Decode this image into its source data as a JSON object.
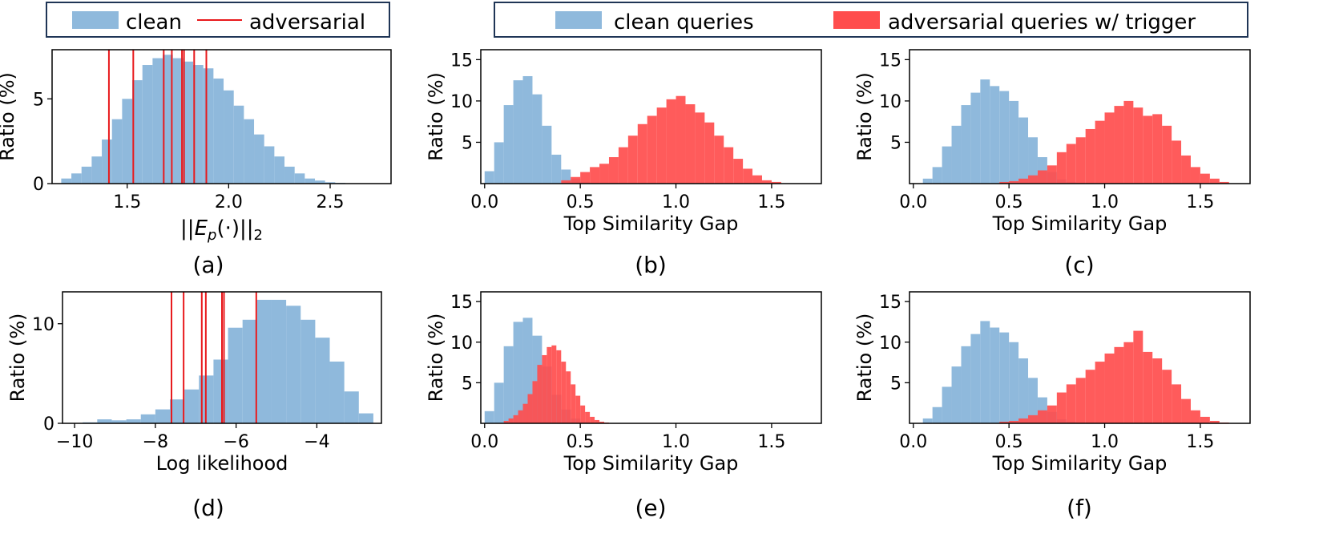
{
  "colors": {
    "clean": "#8fb9dc",
    "adv": "#ff4d4d",
    "adv_line": "#e8191c",
    "frame": "#1f3556"
  },
  "legends": {
    "left": {
      "clean": "clean",
      "adversarial": "adversarial"
    },
    "right": {
      "clean": "clean queries",
      "adversarial": "adversarial queries w/ trigger"
    }
  },
  "chart_data": [
    {
      "id": "a",
      "type": "histogram",
      "caption": "(a)",
      "xlabel_prefix": "||",
      "xlabel_E": "E",
      "xlabel_sub": "p",
      "xlabel_mid": "(·)||",
      "xlabel_sub2": "2",
      "ylabel": "Ratio (%)",
      "xlim": [
        1.13,
        2.8
      ],
      "ylim": [
        0,
        7.9
      ],
      "xticks": [
        1.5,
        2.0,
        2.5
      ],
      "xtick_labels": [
        "1.5",
        "2.0",
        "2.5"
      ],
      "yticks": [
        0,
        5
      ],
      "ytick_labels": [
        "0",
        "5"
      ],
      "series": [
        {
          "name": "clean",
          "bin_start": 1.175,
          "bin_width": 0.05,
          "values": [
            0.3,
            0.6,
            1.0,
            1.6,
            2.6,
            3.8,
            5.0,
            6.1,
            7.0,
            7.4,
            7.6,
            7.4,
            7.2,
            7.0,
            6.8,
            6.2,
            5.5,
            4.6,
            3.8,
            2.9,
            2.2,
            1.6,
            1.0,
            0.6,
            0.3,
            0.18,
            0.08,
            0.04,
            0.02,
            0.01,
            0.01,
            0.01
          ]
        }
      ],
      "adversarial_lines": [
        1.41,
        1.53,
        1.68,
        1.72,
        1.77,
        1.78,
        1.83,
        1.89
      ]
    },
    {
      "id": "b",
      "type": "histogram",
      "caption": "(b)",
      "xlabel": "Top Similarity Gap",
      "ylabel": "Ratio (%)",
      "xlim": [
        -0.02,
        1.76
      ],
      "ylim": [
        0,
        16.2
      ],
      "xticks": [
        0,
        0.5,
        1.0,
        1.5
      ],
      "xtick_labels": [
        "0.0",
        "0.5",
        "1.0",
        "1.5"
      ],
      "yticks": [
        5,
        10,
        15
      ],
      "ytick_labels": [
        "5",
        "10",
        "15"
      ],
      "series": [
        {
          "name": "clean queries",
          "bin_start": 0.0,
          "bin_width": 0.05,
          "values": [
            1.5,
            5.0,
            9.5,
            12.5,
            13.0,
            10.8,
            7.0,
            3.5,
            1.7,
            0.6,
            0.2
          ]
        },
        {
          "name": "adversarial queries w/ trigger",
          "bin_start": 0.4,
          "bin_width": 0.05,
          "values": [
            0.4,
            0.8,
            1.4,
            2.0,
            2.4,
            3.2,
            4.4,
            5.8,
            7.2,
            8.2,
            9.2,
            10.2,
            10.6,
            9.6,
            8.6,
            7.4,
            5.8,
            4.4,
            3.0,
            1.8,
            1.0,
            0.4,
            0.2
          ]
        }
      ]
    },
    {
      "id": "c",
      "type": "histogram",
      "caption": "(c)",
      "xlabel": "Top Similarity Gap",
      "ylabel": "Ratio (%)",
      "xlim": [
        -0.02,
        1.76
      ],
      "ylim": [
        0,
        16.2
      ],
      "xticks": [
        0,
        0.5,
        1.0,
        1.5
      ],
      "xtick_labels": [
        "0.0",
        "0.5",
        "1.0",
        "1.5"
      ],
      "yticks": [
        5,
        10,
        15
      ],
      "ytick_labels": [
        "5",
        "10",
        "15"
      ],
      "series": [
        {
          "name": "clean queries",
          "bin_start": 0.05,
          "bin_width": 0.05,
          "values": [
            0.6,
            2.0,
            4.5,
            7.0,
            9.5,
            11.0,
            12.6,
            11.8,
            11.2,
            10.0,
            8.0,
            5.6,
            3.2,
            1.4,
            0.5,
            0.2
          ]
        },
        {
          "name": "adversarial queries w/ trigger",
          "bin_start": 0.45,
          "bin_width": 0.05,
          "values": [
            0.2,
            0.3,
            0.6,
            1.0,
            1.6,
            2.2,
            3.8,
            4.8,
            5.6,
            6.6,
            7.6,
            8.6,
            9.4,
            10.0,
            9.2,
            8.2,
            8.4,
            7.0,
            5.2,
            3.4,
            2.0,
            1.2,
            0.6,
            0.2
          ]
        }
      ]
    },
    {
      "id": "d",
      "type": "histogram",
      "caption": "(d)",
      "xlabel": "Log likelihood",
      "ylabel": "Ratio (%)",
      "xlim": [
        -10.3,
        -2.4
      ],
      "ylim": [
        0,
        13.2
      ],
      "xticks": [
        -10,
        -8,
        -6,
        -4
      ],
      "xtick_labels": [
        "−10",
        "−8",
        "−6",
        "−4"
      ],
      "yticks": [
        0,
        10
      ],
      "ytick_labels": [
        "0",
        "10"
      ],
      "series": [
        {
          "name": "clean",
          "bin_start": -9.8,
          "bin_width": 0.36,
          "values": [
            0.1,
            0.4,
            0.3,
            0.4,
            0.9,
            1.4,
            2.4,
            3.4,
            4.8,
            6.4,
            9.6,
            10.4,
            12.4,
            12.4,
            11.8,
            10.4,
            8.6,
            6.2,
            3.2,
            1.0
          ]
        }
      ],
      "adversarial_lines": [
        -7.6,
        -7.3,
        -6.85,
        -6.75,
        -6.35,
        -6.3,
        -5.5
      ]
    },
    {
      "id": "e",
      "type": "histogram",
      "caption": "(e)",
      "xlabel": "Top Similarity Gap",
      "ylabel": "Ratio (%)",
      "xlim": [
        -0.02,
        1.76
      ],
      "ylim": [
        0,
        16.2
      ],
      "xticks": [
        0,
        0.5,
        1.0,
        1.5
      ],
      "xtick_labels": [
        "0.0",
        "0.5",
        "1.0",
        "1.5"
      ],
      "yticks": [
        5,
        10,
        15
      ],
      "ytick_labels": [
        "5",
        "10",
        "15"
      ],
      "series": [
        {
          "name": "clean queries",
          "bin_start": 0.0,
          "bin_width": 0.05,
          "values": [
            1.5,
            5.0,
            9.5,
            12.5,
            13.0,
            10.8,
            7.0,
            3.5,
            1.7,
            0.6,
            0.2
          ]
        },
        {
          "name": "adversarial queries w/ trigger",
          "bin_start": 0.1,
          "bin_width": 0.025,
          "values": [
            0.3,
            0.6,
            1.0,
            1.6,
            2.4,
            3.6,
            5.2,
            7.2,
            8.4,
            9.4,
            9.6,
            9.0,
            7.6,
            6.4,
            4.8,
            3.4,
            2.2,
            1.4,
            0.8,
            0.4,
            0.2,
            0.1
          ]
        }
      ]
    },
    {
      "id": "f",
      "type": "histogram",
      "caption": "(f)",
      "xlabel": "Top Similarity Gap",
      "ylabel": "Ratio (%)",
      "xlim": [
        -0.02,
        1.76
      ],
      "ylim": [
        0,
        16.2
      ],
      "xticks": [
        0,
        0.5,
        1.0,
        1.5
      ],
      "xtick_labels": [
        "0.0",
        "0.5",
        "1.0",
        "1.5"
      ],
      "yticks": [
        5,
        10,
        15
      ],
      "ytick_labels": [
        "5",
        "10",
        "15"
      ],
      "series": [
        {
          "name": "clean queries",
          "bin_start": 0.05,
          "bin_width": 0.05,
          "values": [
            0.6,
            2.0,
            4.5,
            7.0,
            9.5,
            11.0,
            12.6,
            11.8,
            11.2,
            10.0,
            8.0,
            5.6,
            3.2,
            1.4,
            0.5,
            0.2
          ]
        },
        {
          "name": "adversarial queries w/ trigger",
          "bin_start": 0.45,
          "bin_width": 0.05,
          "values": [
            0.2,
            0.3,
            0.6,
            1.0,
            1.6,
            2.2,
            3.8,
            4.8,
            5.6,
            6.6,
            7.6,
            8.6,
            9.4,
            10.0,
            11.4,
            8.8,
            8.0,
            6.6,
            4.8,
            3.0,
            1.6,
            0.8,
            0.3,
            0.1
          ]
        }
      ]
    }
  ]
}
